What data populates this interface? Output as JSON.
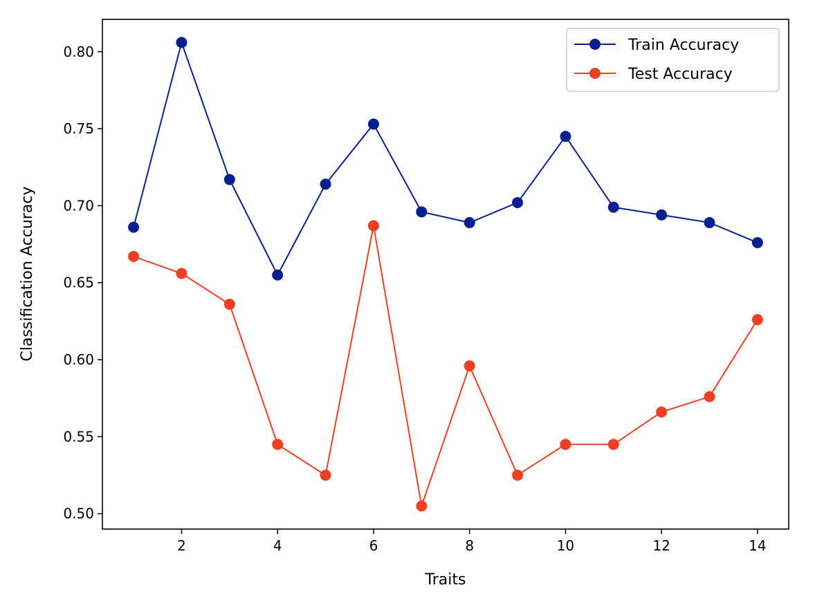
{
  "chart_data": {
    "type": "line",
    "title": "",
    "xlabel": "Traits",
    "ylabel": "Classification Accuracy",
    "xlim": [
      0.35,
      14.65
    ],
    "ylim": [
      0.49,
      0.821
    ],
    "xticks": [
      2,
      4,
      6,
      8,
      10,
      12,
      14
    ],
    "yticks": [
      0.5,
      0.55,
      0.6,
      0.65,
      0.7,
      0.75,
      0.8
    ],
    "xtick_labels": [
      "2",
      "4",
      "6",
      "8",
      "10",
      "12",
      "14"
    ],
    "ytick_labels": [
      "0.50",
      "0.55",
      "0.60",
      "0.65",
      "0.70",
      "0.75",
      "0.80"
    ],
    "grid": false,
    "legend_position": "top-right",
    "x": [
      1,
      2,
      3,
      4,
      5,
      6,
      7,
      8,
      9,
      10,
      11,
      12,
      13,
      14
    ],
    "series": [
      {
        "name": "Train Accuracy",
        "color": "#0a1f8f",
        "marker": "circle",
        "values": [
          0.686,
          0.806,
          0.717,
          0.655,
          0.714,
          0.753,
          0.696,
          0.689,
          0.702,
          0.745,
          0.699,
          0.694,
          0.689,
          0.676
        ]
      },
      {
        "name": "Test Accuracy",
        "color": "#ee3f24",
        "marker": "circle",
        "values": [
          0.667,
          0.656,
          0.636,
          0.545,
          0.525,
          0.687,
          0.505,
          0.596,
          0.525,
          0.545,
          0.545,
          0.566,
          0.576,
          0.626
        ]
      }
    ]
  }
}
